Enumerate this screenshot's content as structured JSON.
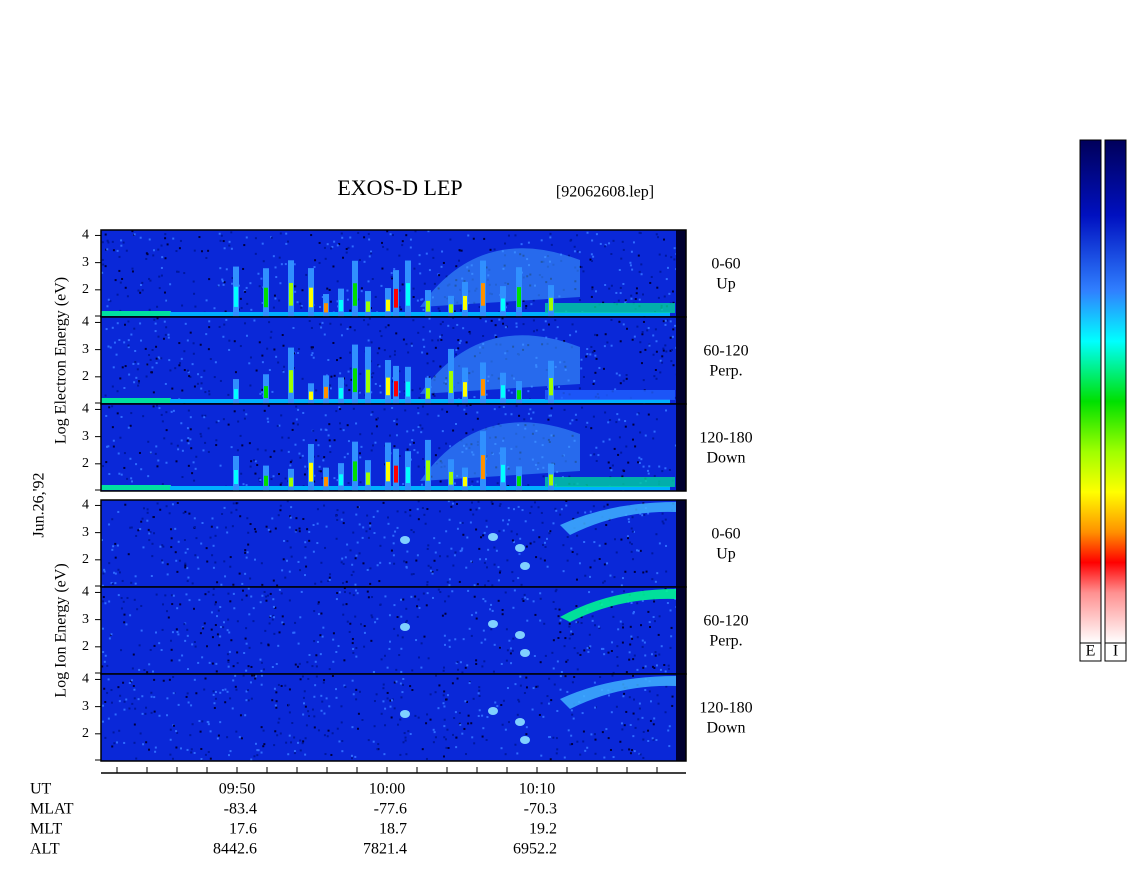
{
  "title": "EXOS-D LEP",
  "file": "[92062608.lep]",
  "date": "Jun.26,'92",
  "ylim": [
    1,
    4.2
  ],
  "yticks": [
    2,
    3,
    4
  ],
  "groups": [
    {
      "axis_label": "Log  Electron  Energy  (eV)",
      "panels": [
        {
          "angle": "0-60",
          "direction": "Up"
        },
        {
          "angle": "60-120",
          "direction": "Perp."
        },
        {
          "angle": "120-180",
          "direction": "Down"
        }
      ]
    },
    {
      "axis_label": "Log  Ion  Energy  (eV)",
      "panels": [
        {
          "angle": "0-60",
          "direction": "Up"
        },
        {
          "angle": "60-120",
          "direction": "Perp."
        },
        {
          "angle": "120-180",
          "direction": "Down"
        }
      ]
    }
  ],
  "orbit_rows": [
    {
      "label": "UT",
      "values": [
        "09:50",
        "10:00",
        "10:10"
      ]
    },
    {
      "label": "MLAT",
      "values": [
        -83.4,
        -77.6,
        -70.3
      ]
    },
    {
      "label": "MLT",
      "values": [
        17.6,
        18.7,
        19.2
      ]
    },
    {
      "label": "ALT",
      "values": [
        8442.6,
        7821.4,
        6952.2
      ]
    }
  ],
  "colorbars": [
    "E",
    "I"
  ]
}
